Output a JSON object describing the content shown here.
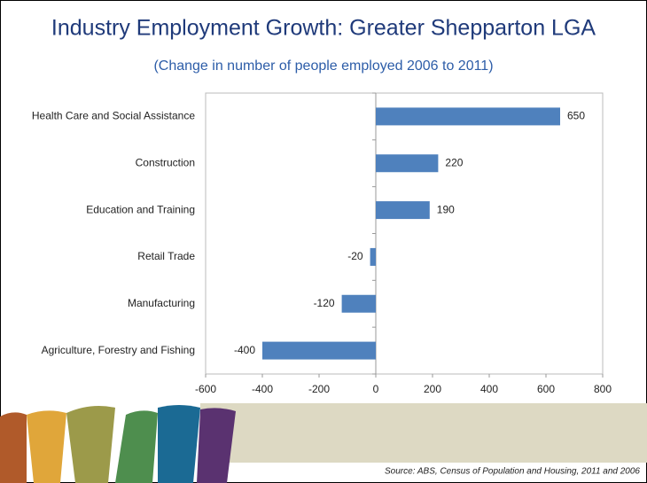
{
  "chart_data": {
    "type": "hbar",
    "title": "Industry Employment Growth: Greater Shepparton LGA",
    "subtitle": "(Change in number of people employed 2006 to 2011)",
    "source": "Source: ABS, Census of Population and Housing, 2011 and 2006",
    "categories": [
      "Health Care and Social Assistance",
      "Construction",
      "Education and Training",
      "Retail Trade",
      "Manufacturing",
      "Agriculture, Forestry and Fishing"
    ],
    "values": [
      650,
      220,
      190,
      -20,
      -120,
      -400
    ],
    "color": "#4F81BD",
    "xlim": [
      -600,
      800
    ],
    "xticks": [
      -600,
      -400,
      -200,
      0,
      200,
      400,
      600,
      800
    ]
  }
}
